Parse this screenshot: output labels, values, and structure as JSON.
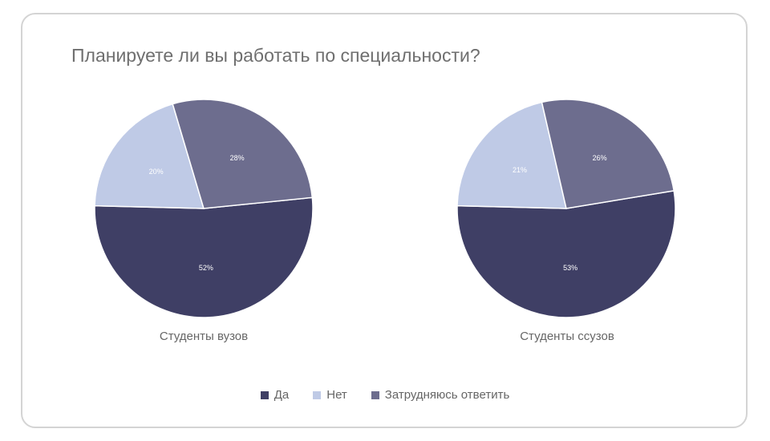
{
  "chart_data": {
    "type": "pie",
    "title": "Планируете ли вы работать по специальности?",
    "legend_position": "bottom",
    "categories": [
      "Да",
      "Нет",
      "Затрудняюсь ответить"
    ],
    "colors": [
      "#3f3f65",
      "#bfcae6",
      "#6d6d8e"
    ],
    "label_color": "#ffffff",
    "series": [
      {
        "name": "Студенты вузов",
        "values": [
          52,
          20,
          28
        ],
        "labels": [
          "52%",
          "20%",
          "28%"
        ]
      },
      {
        "name": "Студенты ссузов",
        "values": [
          53,
          21,
          26
        ],
        "labels": [
          "53%",
          "21%",
          "26%"
        ]
      }
    ]
  }
}
